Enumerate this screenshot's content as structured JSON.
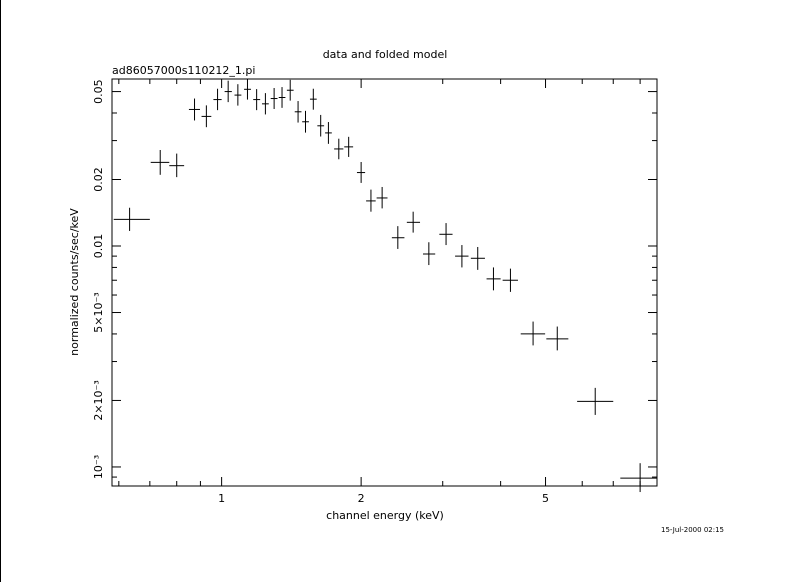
{
  "chart_data": {
    "type": "scatter",
    "title": "data and folded model",
    "subtitle": "ad86057000s110212_1.pi",
    "xlabel": "channel energy (keV)",
    "ylabel": "normalized counts/sec/keV",
    "timestamp": "15-Jul-2000 02:15",
    "xscale": "log",
    "yscale": "log",
    "xlim": [
      0.58,
      8.7
    ],
    "ylim": [
      0.00082,
      0.057
    ],
    "xticks": [
      {
        "value": 1,
        "label": "1"
      },
      {
        "value": 2,
        "label": "2"
      },
      {
        "value": 5,
        "label": "5"
      }
    ],
    "yticks": [
      {
        "value": 0.001,
        "label": "10⁻³"
      },
      {
        "value": 0.002,
        "label": "2×10⁻³"
      },
      {
        "value": 0.005,
        "label": "5×10⁻³"
      },
      {
        "value": 0.01,
        "label": "0.01"
      },
      {
        "value": 0.02,
        "label": "0.02"
      },
      {
        "value": 0.05,
        "label": "0.05"
      }
    ],
    "series": [
      {
        "marker": "crosshair with error bars",
        "points": [
          {
            "x": 0.633,
            "xlo": 0.585,
            "xhi": 0.7,
            "y": 0.0132,
            "ylo": 0.0117,
            "yhi": 0.0149
          },
          {
            "x": 0.737,
            "xlo": 0.703,
            "xhi": 0.771,
            "y": 0.0239,
            "ylo": 0.021,
            "yhi": 0.0272
          },
          {
            "x": 0.8,
            "xlo": 0.771,
            "xhi": 0.83,
            "y": 0.0231,
            "ylo": 0.0205,
            "yhi": 0.0262
          },
          {
            "x": 0.874,
            "xlo": 0.85,
            "xhi": 0.898,
            "y": 0.0415,
            "ylo": 0.037,
            "yhi": 0.0465
          },
          {
            "x": 0.927,
            "xlo": 0.905,
            "xhi": 0.95,
            "y": 0.0386,
            "ylo": 0.0345,
            "yhi": 0.0433
          },
          {
            "x": 0.98,
            "xlo": 0.96,
            "xhi": 1.0,
            "y": 0.046,
            "ylo": 0.0412,
            "yhi": 0.0515
          },
          {
            "x": 1.033,
            "xlo": 1.015,
            "xhi": 1.052,
            "y": 0.05,
            "ylo": 0.0448,
            "yhi": 0.056
          },
          {
            "x": 1.084,
            "xlo": 1.066,
            "xhi": 1.103,
            "y": 0.0482,
            "ylo": 0.0432,
            "yhi": 0.054
          },
          {
            "x": 1.137,
            "xlo": 1.118,
            "xhi": 1.157,
            "y": 0.0512,
            "ylo": 0.046,
            "yhi": 0.057
          },
          {
            "x": 1.19,
            "xlo": 1.17,
            "xhi": 1.211,
            "y": 0.046,
            "ylo": 0.0412,
            "yhi": 0.0513
          },
          {
            "x": 1.243,
            "xlo": 1.222,
            "xhi": 1.264,
            "y": 0.044,
            "ylo": 0.0394,
            "yhi": 0.0492
          },
          {
            "x": 1.298,
            "xlo": 1.276,
            "xhi": 1.32,
            "y": 0.0465,
            "ylo": 0.0417,
            "yhi": 0.0519
          },
          {
            "x": 1.35,
            "xlo": 1.328,
            "xhi": 1.373,
            "y": 0.047,
            "ylo": 0.0422,
            "yhi": 0.0524
          },
          {
            "x": 1.406,
            "xlo": 1.383,
            "xhi": 1.43,
            "y": 0.0507,
            "ylo": 0.0455,
            "yhi": 0.0565
          },
          {
            "x": 1.462,
            "xlo": 1.438,
            "xhi": 1.487,
            "y": 0.0405,
            "ylo": 0.0362,
            "yhi": 0.0453
          },
          {
            "x": 1.517,
            "xlo": 1.492,
            "xhi": 1.543,
            "y": 0.0365,
            "ylo": 0.0326,
            "yhi": 0.0409
          },
          {
            "x": 1.577,
            "xlo": 1.551,
            "xhi": 1.604,
            "y": 0.0462,
            "ylo": 0.0414,
            "yhi": 0.0515
          },
          {
            "x": 1.636,
            "xlo": 1.609,
            "xhi": 1.664,
            "y": 0.035,
            "ylo": 0.0313,
            "yhi": 0.0392
          },
          {
            "x": 1.7,
            "xlo": 1.672,
            "xhi": 1.729,
            "y": 0.0325,
            "ylo": 0.029,
            "yhi": 0.0364
          },
          {
            "x": 1.79,
            "xlo": 1.749,
            "xhi": 1.831,
            "y": 0.0275,
            "ylo": 0.0247,
            "yhi": 0.0306
          },
          {
            "x": 1.88,
            "xlo": 1.839,
            "xhi": 1.922,
            "y": 0.0281,
            "ylo": 0.0253,
            "yhi": 0.0312
          },
          {
            "x": 2.0,
            "xlo": 1.959,
            "xhi": 2.04,
            "y": 0.0215,
            "ylo": 0.0193,
            "yhi": 0.024
          },
          {
            "x": 2.1,
            "xlo": 2.05,
            "xhi": 2.15,
            "y": 0.016,
            "ylo": 0.0143,
            "yhi": 0.018
          },
          {
            "x": 2.22,
            "xlo": 2.16,
            "xhi": 2.28,
            "y": 0.0165,
            "ylo": 0.0148,
            "yhi": 0.0185
          },
          {
            "x": 2.4,
            "xlo": 2.33,
            "xhi": 2.48,
            "y": 0.0109,
            "ylo": 0.0097,
            "yhi": 0.0123
          },
          {
            "x": 2.59,
            "xlo": 2.51,
            "xhi": 2.68,
            "y": 0.0128,
            "ylo": 0.0115,
            "yhi": 0.0143
          },
          {
            "x": 2.8,
            "xlo": 2.72,
            "xhi": 2.89,
            "y": 0.0092,
            "ylo": 0.0082,
            "yhi": 0.0104
          },
          {
            "x": 3.05,
            "xlo": 2.95,
            "xhi": 3.15,
            "y": 0.0113,
            "ylo": 0.0101,
            "yhi": 0.0127
          },
          {
            "x": 3.3,
            "xlo": 3.19,
            "xhi": 3.41,
            "y": 0.009,
            "ylo": 0.008,
            "yhi": 0.0101
          },
          {
            "x": 3.57,
            "xlo": 3.45,
            "xhi": 3.7,
            "y": 0.0088,
            "ylo": 0.0078,
            "yhi": 0.0099
          },
          {
            "x": 3.86,
            "xlo": 3.73,
            "xhi": 4.0,
            "y": 0.0071,
            "ylo": 0.0063,
            "yhi": 0.008
          },
          {
            "x": 4.2,
            "xlo": 4.04,
            "xhi": 4.36,
            "y": 0.007,
            "ylo": 0.0062,
            "yhi": 0.0079
          },
          {
            "x": 4.7,
            "xlo": 4.42,
            "xhi": 4.99,
            "y": 0.004,
            "ylo": 0.00355,
            "yhi": 0.00455
          },
          {
            "x": 5.3,
            "xlo": 5.02,
            "xhi": 5.6,
            "y": 0.0038,
            "ylo": 0.00337,
            "yhi": 0.00432
          },
          {
            "x": 6.4,
            "xlo": 5.85,
            "xhi": 7.0,
            "y": 0.00198,
            "ylo": 0.00172,
            "yhi": 0.00228
          },
          {
            "x": 8.0,
            "xlo": 7.25,
            "xhi": 8.7,
            "y": 0.00089,
            "ylo": 0.00077,
            "yhi": 0.00104
          }
        ]
      }
    ]
  }
}
